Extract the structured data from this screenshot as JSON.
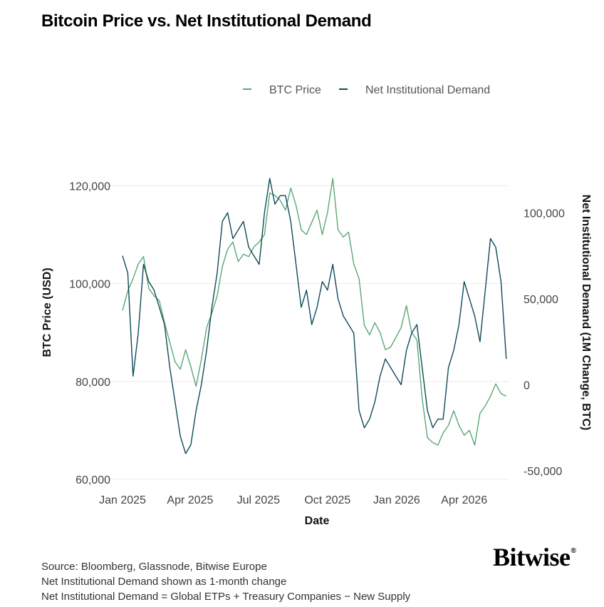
{
  "title": "Bitcoin Price vs. Net Institutional Demand",
  "footer": {
    "line1": "Source: Bloomberg, Glassnode, Bitwise Europe",
    "line2": "Net Institutional Demand shown as 1-month change",
    "line3": "Net Institutional Demand = Global ETPs + Treasury Companies − New Supply"
  },
  "logo": {
    "text": "Bitwise",
    "mark": "®"
  },
  "colors": {
    "btc": "#5aa874",
    "demand": "#0f4a5a",
    "grid": "#ececec",
    "axis_text": "#444444"
  },
  "chart_data": {
    "type": "line",
    "title": "Bitcoin Price vs. Net Institutional Demand",
    "xlabel": "Date",
    "ylabel": "BTC Price (USD)",
    "y2label": "Net Institutional Demand (1M Change, BTC)",
    "x_ticks": [
      "Jan 2025",
      "Apr 2025",
      "Jul 2025",
      "Oct 2025",
      "Jan 2026",
      "Apr 2026"
    ],
    "xlim": [
      "2025-01-01",
      "2026-05-31"
    ],
    "ylim": [
      60000,
      125000
    ],
    "y_ticks": [
      60000,
      80000,
      100000,
      120000
    ],
    "y_tick_labels": [
      "60,000",
      "80,000",
      "100,000",
      "120,000"
    ],
    "y2lim": [
      -55000,
      130000
    ],
    "y2_ticks": [
      -50000,
      0,
      50000,
      100000
    ],
    "y2_tick_labels": [
      "-50,000",
      "0",
      "50,000",
      "100,000"
    ],
    "legend": [
      "BTC Price",
      "Net Institutional Demand"
    ],
    "legend_position": "top-right",
    "grid": "horizontal",
    "series": [
      {
        "name": "BTC Price",
        "axis": "left",
        "x": [
          "2025-01-01",
          "2025-01-08",
          "2025-01-15",
          "2025-01-22",
          "2025-01-29",
          "2025-02-05",
          "2025-02-12",
          "2025-02-19",
          "2025-02-26",
          "2025-03-05",
          "2025-03-12",
          "2025-03-19",
          "2025-03-26",
          "2025-04-02",
          "2025-04-09",
          "2025-04-16",
          "2025-04-23",
          "2025-04-30",
          "2025-05-07",
          "2025-05-14",
          "2025-05-21",
          "2025-05-28",
          "2025-06-04",
          "2025-06-11",
          "2025-06-18",
          "2025-06-25",
          "2025-07-02",
          "2025-07-09",
          "2025-07-16",
          "2025-07-23",
          "2025-07-30",
          "2025-08-06",
          "2025-08-13",
          "2025-08-20",
          "2025-08-27",
          "2025-09-03",
          "2025-09-10",
          "2025-09-17",
          "2025-09-24",
          "2025-10-01",
          "2025-10-08",
          "2025-10-15",
          "2025-10-22",
          "2025-10-29",
          "2025-11-05",
          "2025-11-12",
          "2025-11-19",
          "2025-11-26",
          "2025-12-03",
          "2025-12-10",
          "2025-12-17",
          "2025-12-24",
          "2025-12-31",
          "2026-01-07",
          "2026-01-14",
          "2026-01-21",
          "2026-01-28",
          "2026-02-04",
          "2026-02-11",
          "2026-02-18",
          "2026-02-25",
          "2026-03-04",
          "2026-03-11",
          "2026-03-18",
          "2026-03-25",
          "2026-04-01",
          "2026-04-08",
          "2026-04-15",
          "2026-04-22",
          "2026-04-29",
          "2026-05-06",
          "2026-05-13",
          "2026-05-20",
          "2026-05-27"
        ],
        "values": [
          94500,
          98500,
          101000,
          104000,
          105500,
          99000,
          97500,
          96500,
          92000,
          88000,
          84000,
          82500,
          86500,
          83000,
          79000,
          84500,
          91000,
          94000,
          97500,
          103500,
          107000,
          108500,
          104500,
          106000,
          105500,
          107500,
          108500,
          110000,
          118500,
          118000,
          117000,
          115000,
          119500,
          116000,
          111000,
          110000,
          112500,
          115000,
          110000,
          114500,
          121500,
          111000,
          109500,
          110500,
          104000,
          101000,
          91500,
          89500,
          92000,
          90000,
          86500,
          87000,
          89000,
          91000,
          95500,
          90000,
          88500,
          76500,
          68500,
          67500,
          67000,
          69500,
          71000,
          74000,
          71000,
          69000,
          70000,
          67000,
          73500,
          75000,
          77000,
          79500,
          77500,
          77000
        ]
      },
      {
        "name": "Net Institutional Demand",
        "axis": "right",
        "x": [
          "2025-01-01",
          "2025-01-08",
          "2025-01-15",
          "2025-01-22",
          "2025-01-29",
          "2025-02-05",
          "2025-02-12",
          "2025-02-19",
          "2025-02-26",
          "2025-03-05",
          "2025-03-12",
          "2025-03-19",
          "2025-03-26",
          "2025-04-02",
          "2025-04-09",
          "2025-04-16",
          "2025-04-23",
          "2025-04-30",
          "2025-05-07",
          "2025-05-14",
          "2025-05-21",
          "2025-05-28",
          "2025-06-04",
          "2025-06-11",
          "2025-06-18",
          "2025-06-25",
          "2025-07-02",
          "2025-07-09",
          "2025-07-16",
          "2025-07-23",
          "2025-07-30",
          "2025-08-06",
          "2025-08-13",
          "2025-08-20",
          "2025-08-27",
          "2025-09-03",
          "2025-09-10",
          "2025-09-17",
          "2025-09-24",
          "2025-10-01",
          "2025-10-08",
          "2025-10-15",
          "2025-10-22",
          "2025-10-29",
          "2025-11-05",
          "2025-11-12",
          "2025-11-19",
          "2025-11-26",
          "2025-12-03",
          "2025-12-10",
          "2025-12-17",
          "2025-12-24",
          "2025-12-31",
          "2026-01-07",
          "2026-01-14",
          "2026-01-21",
          "2026-01-28",
          "2026-02-04",
          "2026-02-11",
          "2026-02-18",
          "2026-02-25",
          "2026-03-04",
          "2026-03-11",
          "2026-03-18",
          "2026-03-25",
          "2026-04-01",
          "2026-04-08",
          "2026-04-15",
          "2026-04-22",
          "2026-04-29",
          "2026-05-06",
          "2026-05-13",
          "2026-05-20",
          "2026-05-27"
        ],
        "values": [
          75000,
          65000,
          5000,
          30000,
          70000,
          60000,
          55000,
          45000,
          35000,
          10000,
          -10000,
          -30000,
          -40000,
          -35000,
          -15000,
          0,
          20000,
          45000,
          65000,
          95000,
          100000,
          85000,
          90000,
          95000,
          80000,
          75000,
          70000,
          100000,
          120000,
          105000,
          110000,
          110000,
          95000,
          70000,
          45000,
          55000,
          35000,
          45000,
          60000,
          55000,
          70000,
          50000,
          40000,
          35000,
          30000,
          -15000,
          -25000,
          -20000,
          -10000,
          5000,
          15000,
          10000,
          5000,
          0,
          20000,
          30000,
          35000,
          10000,
          -15000,
          -25000,
          -20000,
          -20000,
          10000,
          20000,
          35000,
          60000,
          50000,
          40000,
          25000,
          55000,
          85000,
          80000,
          60000,
          15000
        ]
      }
    ]
  }
}
